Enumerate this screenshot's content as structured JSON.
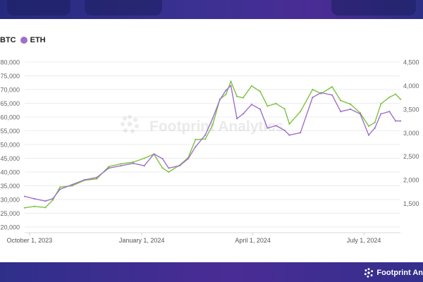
{
  "brand": {
    "watermark": "Footprint Analytics",
    "footer": "Footprint An"
  },
  "chart_data": {
    "type": "line",
    "title": "",
    "xlabel": "",
    "ylabel_left": "",
    "ylabel_right": "",
    "x_ticks": [
      {
        "label": "October 1, 2023",
        "date": "2023-10-01"
      },
      {
        "label": "January 1, 2024",
        "date": "2024-01-01"
      },
      {
        "label": "April 1, 2024",
        "date": "2024-04-01"
      },
      {
        "label": "July 1, 2024",
        "date": "2024-07-01"
      }
    ],
    "x_range": [
      "2023-09-27",
      "2024-07-31"
    ],
    "y_left": {
      "min": 20000,
      "max": 80000,
      "step": 5000,
      "ticks": [
        "20,000",
        "25,000",
        "30,000",
        "35,000",
        "40,000",
        "45,000",
        "50,000",
        "55,000",
        "60,000",
        "65,000",
        "70,000",
        "75,000",
        "80,000"
      ]
    },
    "y_right": {
      "min": 1000,
      "max": 4500,
      "step": 500,
      "ticks": [
        "1,500",
        "2,000",
        "2,500",
        "3,000",
        "3,500",
        "4,000",
        "4,500"
      ]
    },
    "grid": true,
    "legend_position": "top-left",
    "series": [
      {
        "name": "BTC",
        "axis": "left",
        "color": "#7dc241",
        "x": [
          "2023-09-27",
          "2023-10-05",
          "2023-10-14",
          "2023-10-20",
          "2023-10-26",
          "2023-11-05",
          "2023-11-15",
          "2023-11-25",
          "2023-12-05",
          "2023-12-15",
          "2023-12-25",
          "2024-01-03",
          "2024-01-11",
          "2024-01-18",
          "2024-01-23",
          "2024-02-01",
          "2024-02-08",
          "2024-02-14",
          "2024-02-22",
          "2024-02-28",
          "2024-03-05",
          "2024-03-10",
          "2024-03-14",
          "2024-03-19",
          "2024-03-24",
          "2024-03-31",
          "2024-04-07",
          "2024-04-13",
          "2024-04-20",
          "2024-04-27",
          "2024-05-01",
          "2024-05-10",
          "2024-05-20",
          "2024-05-27",
          "2024-06-05",
          "2024-06-12",
          "2024-06-20",
          "2024-06-28",
          "2024-07-05",
          "2024-07-10",
          "2024-07-15",
          "2024-07-22",
          "2024-07-27",
          "2024-07-31"
        ],
        "y": [
          27000,
          27500,
          27100,
          29800,
          34500,
          35000,
          37000,
          37500,
          42000,
          43000,
          43600,
          45000,
          46500,
          41500,
          40000,
          42500,
          45200,
          51800,
          52000,
          57000,
          66500,
          68200,
          73000,
          67500,
          67000,
          71300,
          69300,
          64000,
          64900,
          63000,
          57500,
          62000,
          70000,
          68500,
          71000,
          66000,
          64700,
          61500,
          56700,
          58000,
          64800,
          67200,
          68300,
          66500
        ]
      },
      {
        "name": "ETH",
        "axis": "right",
        "color": "#a06fc9",
        "x": [
          "2023-09-27",
          "2023-10-05",
          "2023-10-14",
          "2023-10-20",
          "2023-10-26",
          "2023-11-05",
          "2023-11-15",
          "2023-11-25",
          "2023-12-05",
          "2023-12-15",
          "2023-12-25",
          "2024-01-03",
          "2024-01-11",
          "2024-01-18",
          "2024-01-23",
          "2024-02-01",
          "2024-02-08",
          "2024-02-14",
          "2024-02-22",
          "2024-02-28",
          "2024-03-05",
          "2024-03-10",
          "2024-03-14",
          "2024-03-19",
          "2024-03-24",
          "2024-03-31",
          "2024-04-07",
          "2024-04-13",
          "2024-04-20",
          "2024-04-27",
          "2024-05-01",
          "2024-05-10",
          "2024-05-20",
          "2024-05-27",
          "2024-06-05",
          "2024-06-12",
          "2024-06-20",
          "2024-06-28",
          "2024-07-05",
          "2024-07-10",
          "2024-07-15",
          "2024-07-22",
          "2024-07-27",
          "2024-07-31"
        ],
        "y": [
          1650,
          1600,
          1550,
          1600,
          1800,
          1900,
          2000,
          2050,
          2250,
          2300,
          2350,
          2300,
          2550,
          2450,
          2250,
          2300,
          2450,
          2700,
          2950,
          3300,
          3700,
          3900,
          4000,
          3300,
          3400,
          3600,
          3500,
          3100,
          3150,
          3050,
          2950,
          3000,
          3750,
          3850,
          3800,
          3450,
          3500,
          3400,
          2950,
          3100,
          3400,
          3450,
          3250,
          3250
        ]
      }
    ]
  }
}
